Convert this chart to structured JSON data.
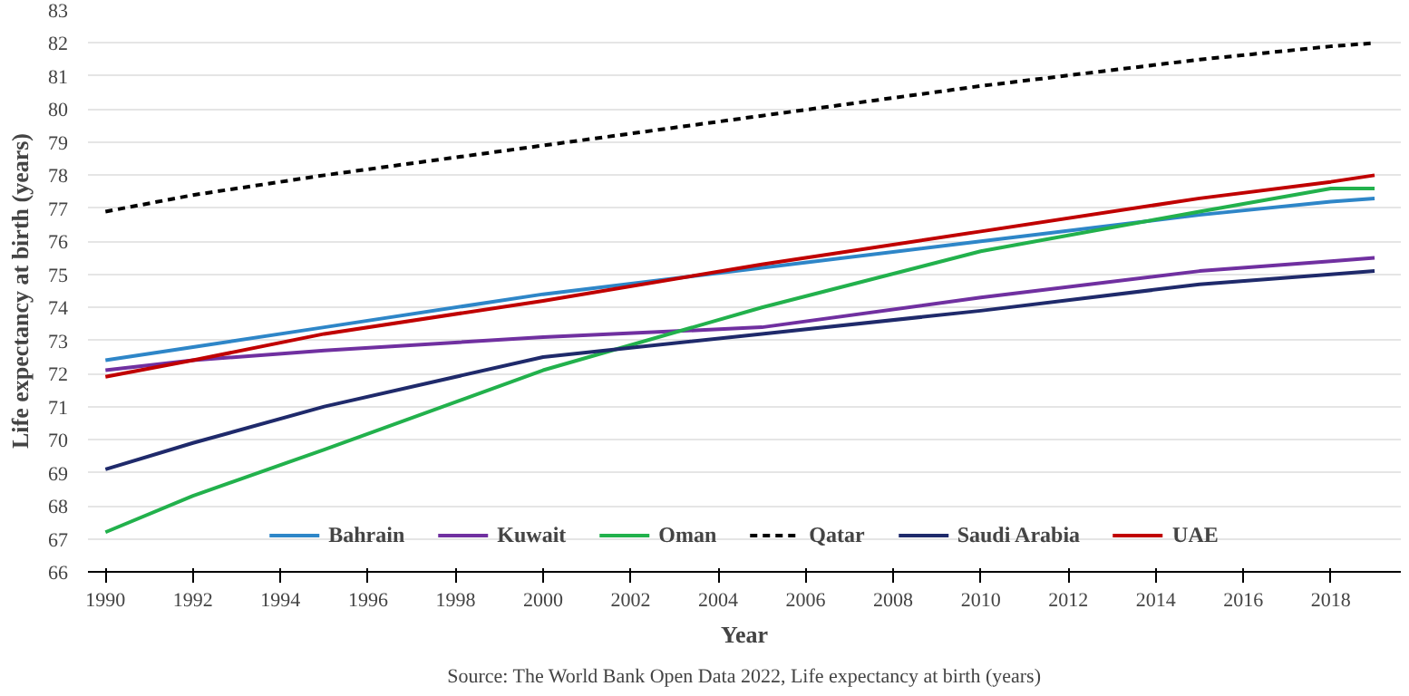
{
  "chart_data": {
    "type": "line",
    "xlabel": "Year",
    "ylabel": "Life expectancy at birth (years)",
    "annotations": [
      "Source: The World Bank Open Data 2022, Life expectancy at birth (years)"
    ],
    "x": [
      1990,
      1992,
      1995,
      2000,
      2005,
      2010,
      2015,
      2018,
      2019
    ],
    "series": [
      {
        "name": "Bahrain",
        "color": "#2e86c8",
        "values": [
          72.4,
          72.8,
          73.4,
          74.4,
          75.2,
          76.0,
          76.8,
          77.2,
          77.3
        ]
      },
      {
        "name": "Kuwait",
        "color": "#7030a0",
        "values": [
          72.1,
          72.4,
          72.7,
          73.1,
          73.4,
          74.3,
          75.1,
          75.4,
          75.5
        ]
      },
      {
        "name": "Oman",
        "color": "#22b14c",
        "values": [
          67.2,
          68.3,
          69.7,
          72.1,
          74.0,
          75.7,
          76.9,
          77.6,
          77.6
        ]
      },
      {
        "name": "Qatar",
        "color": "#000000",
        "line_style": "dashed",
        "values": [
          76.9,
          77.4,
          78.0,
          78.9,
          79.8,
          80.7,
          81.5,
          81.9,
          82.0
        ]
      },
      {
        "name": "Saudi Arabia",
        "color": "#1f2a6b",
        "values": [
          69.1,
          69.9,
          71.0,
          72.5,
          73.2,
          73.9,
          74.7,
          75.0,
          75.1
        ]
      },
      {
        "name": "UAE",
        "color": "#c00000",
        "values": [
          71.9,
          72.4,
          73.2,
          74.2,
          75.3,
          76.3,
          77.3,
          77.8,
          78.0
        ]
      }
    ],
    "xlim": [
      1989.6,
      2019.6
    ],
    "xticks": [
      1990,
      1992,
      1994,
      1996,
      1998,
      2000,
      2002,
      2004,
      2006,
      2008,
      2010,
      2012,
      2014,
      2016,
      2018
    ],
    "ylim": [
      66,
      83
    ],
    "yticks": [
      66,
      67,
      68,
      69,
      70,
      71,
      72,
      73,
      74,
      75,
      76,
      77,
      78,
      79,
      80,
      81,
      82,
      83
    ],
    "grid": "y",
    "legend": "bottom",
    "marker": "none",
    "line_style": "solid"
  }
}
